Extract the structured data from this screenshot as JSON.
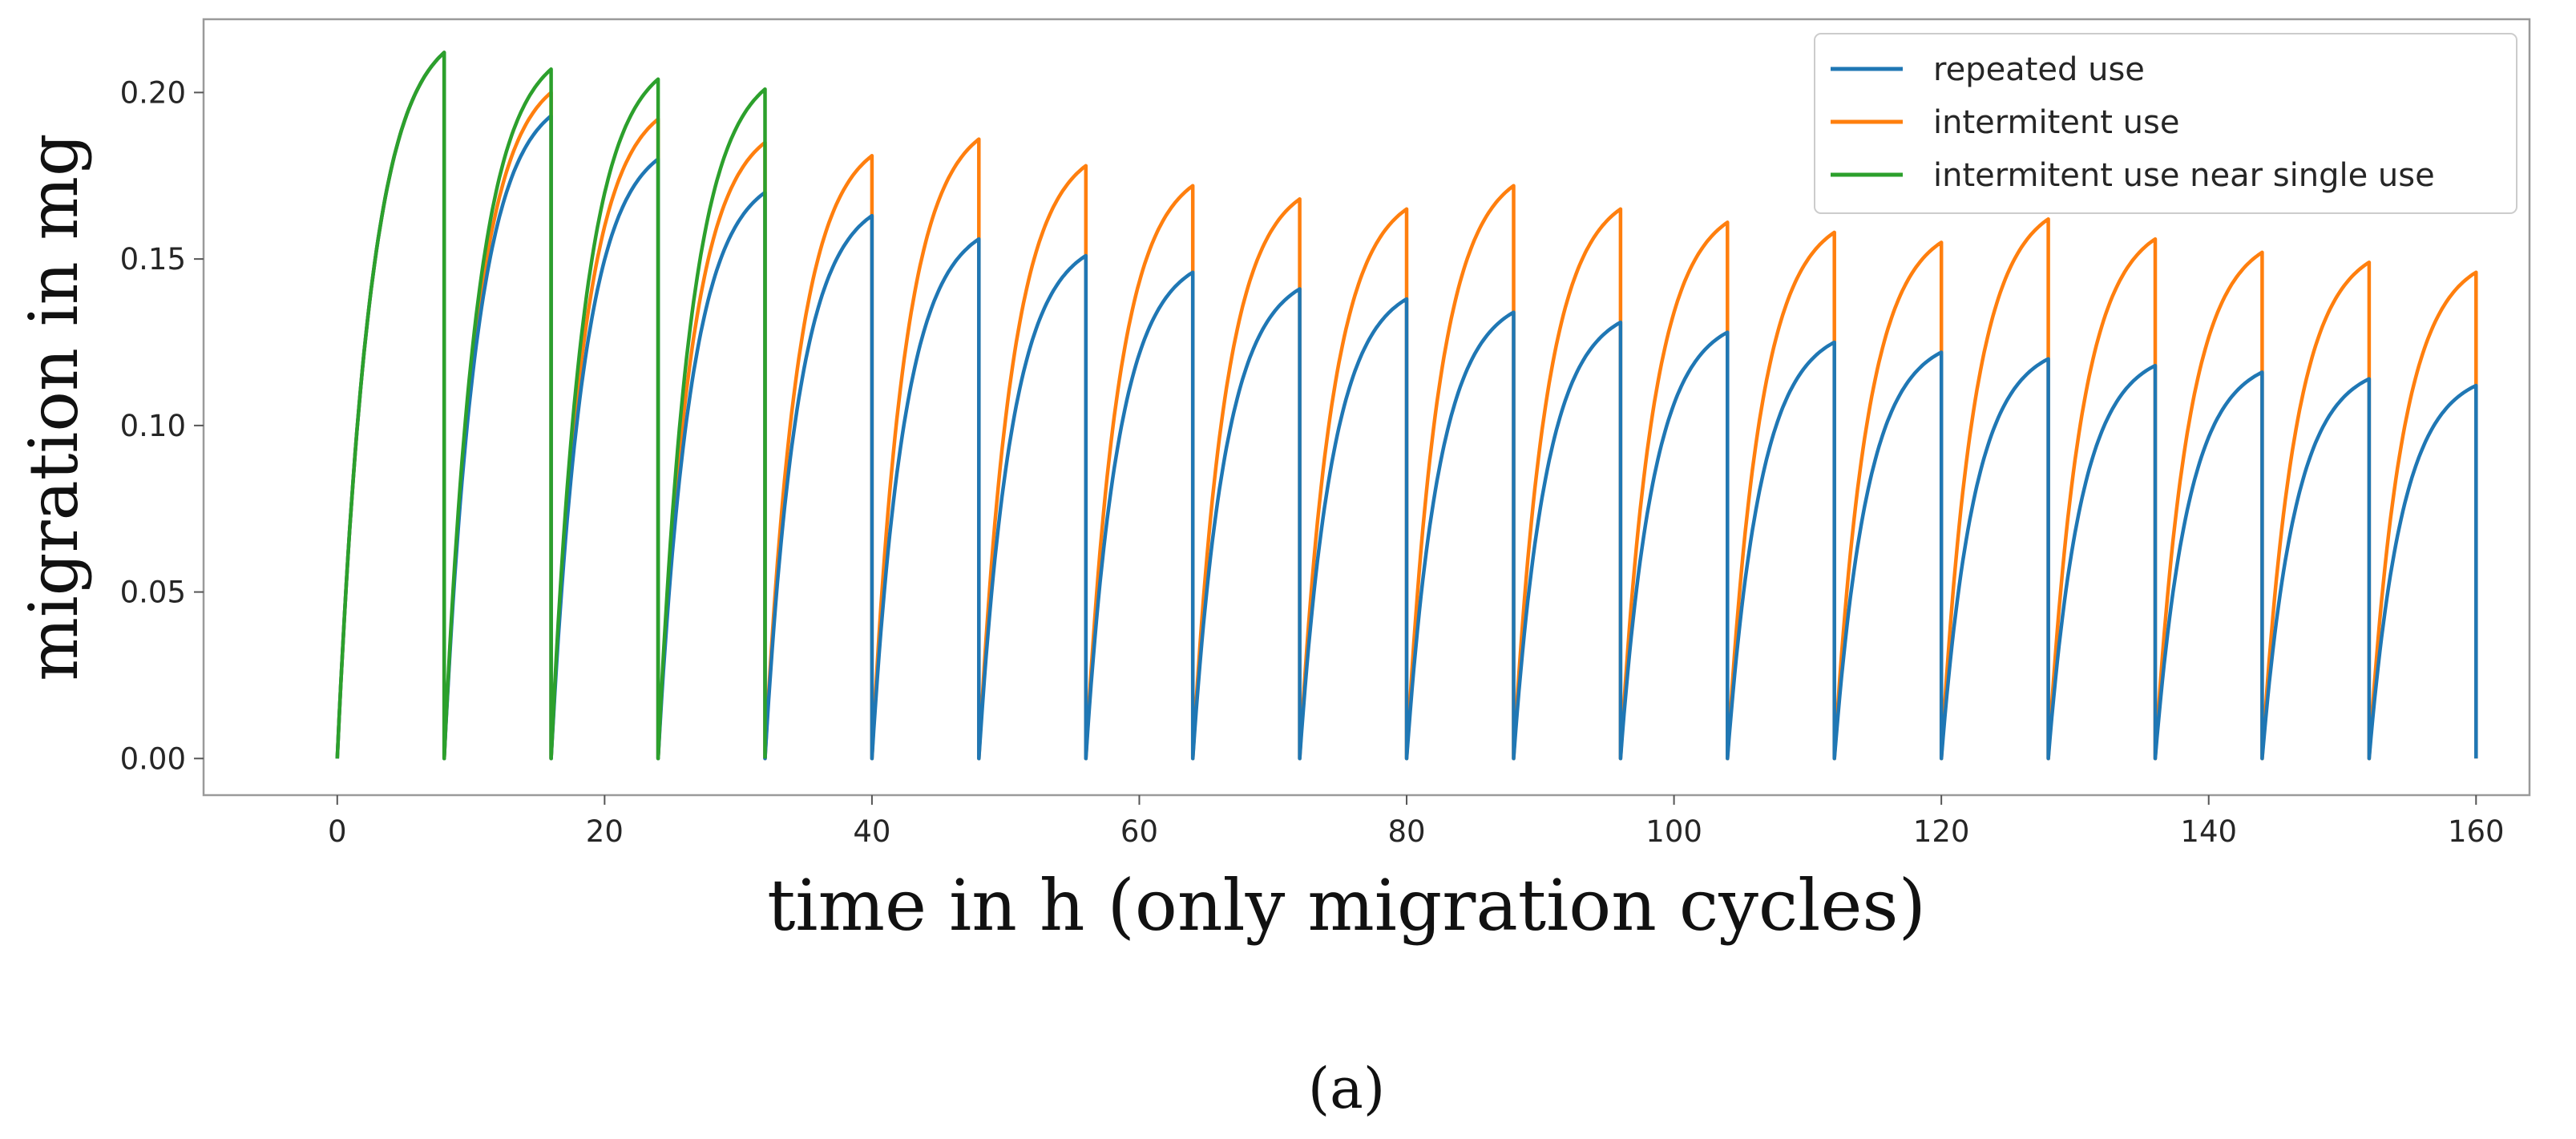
{
  "chart_data": {
    "type": "line",
    "title": "",
    "xlabel": "time in h (only migration cycles)",
    "ylabel": "migration in mg",
    "caption": "(a)",
    "xlim": [
      -10,
      164
    ],
    "ylim": [
      -0.011,
      0.222
    ],
    "x_ticks": [
      0,
      20,
      40,
      60,
      80,
      100,
      120,
      140,
      160
    ],
    "x_tick_labels": [
      "0",
      "20",
      "40",
      "60",
      "80",
      "100",
      "120",
      "140",
      "160"
    ],
    "y_ticks": [
      0.0,
      0.05,
      0.1,
      0.15,
      0.2
    ],
    "y_tick_labels": [
      "0.00",
      "0.05",
      "0.10",
      "0.15",
      "0.20"
    ],
    "grid": false,
    "legend_position": "top-right",
    "cycle_length_h": 8,
    "cycle_start_value": 0.0,
    "series": [
      {
        "name": "repeated use",
        "color": "#1f77b4",
        "cycle_peaks": [
          0.212,
          0.193,
          0.18,
          0.17,
          0.163,
          0.156,
          0.151,
          0.146,
          0.141,
          0.138,
          0.134,
          0.131,
          0.128,
          0.125,
          0.122,
          0.12,
          0.118,
          0.116,
          0.114,
          0.112
        ]
      },
      {
        "name": "intermitent use",
        "color": "#ff7f0e",
        "cycle_peaks": [
          0.212,
          0.2,
          0.192,
          0.185,
          0.181,
          0.186,
          0.178,
          0.172,
          0.168,
          0.165,
          0.172,
          0.165,
          0.161,
          0.158,
          0.155,
          0.162,
          0.156,
          0.152,
          0.149,
          0.146
        ]
      },
      {
        "name": "intermitent use near single use",
        "color": "#2ca02c",
        "cycle_peaks": [
          0.212,
          0.207,
          0.204,
          0.201
        ]
      }
    ]
  }
}
